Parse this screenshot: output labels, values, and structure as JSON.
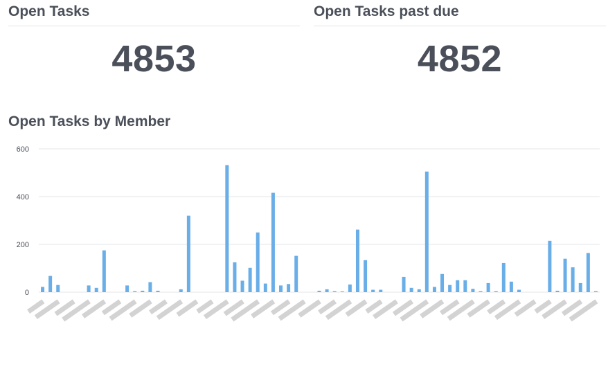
{
  "kpis": [
    {
      "title": "Open Tasks",
      "value": "4853"
    },
    {
      "title": "Open Tasks past due",
      "value": "4852"
    }
  ],
  "chart_section": {
    "title": "Open Tasks by Member"
  },
  "colors": {
    "bar": "#6aaee8",
    "grid": "#e3e5e8",
    "text": "#4a4f59",
    "blurred_label": "#c4c4c4"
  },
  "chart_data": {
    "type": "bar",
    "title": "Open Tasks by Member",
    "ylim": [
      0,
      600
    ],
    "yticks": [
      0,
      200,
      400,
      600
    ],
    "grid": true,
    "category_labels_obscured": true,
    "values": [
      22,
      68,
      30,
      0,
      0,
      0,
      28,
      18,
      175,
      0,
      0,
      28,
      4,
      6,
      42,
      6,
      0,
      0,
      12,
      320,
      0,
      0,
      0,
      0,
      532,
      125,
      48,
      102,
      250,
      36,
      416,
      28,
      34,
      152,
      0,
      0,
      6,
      12,
      4,
      3,
      32,
      262,
      134,
      10,
      10,
      0,
      0,
      64,
      18,
      12,
      505,
      22,
      76,
      30,
      50,
      50,
      14,
      4,
      38,
      4,
      122,
      44,
      10,
      0,
      0,
      0,
      215,
      6,
      140,
      104,
      38,
      164,
      4
    ]
  }
}
